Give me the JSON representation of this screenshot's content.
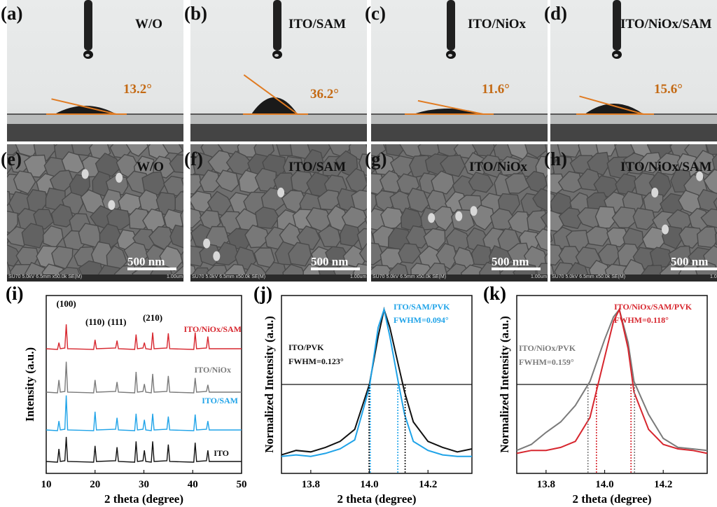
{
  "contact_angle_panels": [
    {
      "label": "(a)",
      "title": "W/O",
      "angle": "13.2°",
      "angle_value": 13.2
    },
    {
      "label": "(b)",
      "title": "ITO/SAM",
      "angle": "36.2°",
      "angle_value": 36.2
    },
    {
      "label": "(c)",
      "title": "ITO/NiOx",
      "angle": "11.6°",
      "angle_value": 11.6
    },
    {
      "label": "(d)",
      "title": "ITO/NiOx/SAM",
      "angle": "15.6°",
      "angle_value": 15.6
    }
  ],
  "sem_panels": [
    {
      "label": "(e)",
      "title": "W/O",
      "scale": "500 nm",
      "meta": "SU70 5.0kV 6.5mm x50.0k SE(M)",
      "scale_small": "1.00um"
    },
    {
      "label": "(f)",
      "title": "ITO/SAM",
      "scale": "500 nm",
      "meta": "SU70 5.0kV 6.5mm x50.0k SE(M)",
      "scale_small": "1.00um"
    },
    {
      "label": "(g)",
      "title": "ITO/NiOx",
      "scale": "500 nm",
      "meta": "SU70 5.0kV 6.5mm x50.0k SE(M)",
      "scale_small": "1.00um"
    },
    {
      "label": "(h)",
      "title": "ITO/NiOx/SAM",
      "scale": "500 nm",
      "meta": "SU70 5.0kV 6.5mm x50.0k SE(M)",
      "scale_small": "1.00um"
    }
  ],
  "colors": {
    "black": "#111111",
    "gray": "#7a7a7a",
    "blue": "#1fa3e8",
    "red": "#d7262e",
    "orange": "#e07b22"
  },
  "chart_data": [
    {
      "panel": "(i)",
      "type": "line",
      "xlabel": "2 theta (degree)",
      "ylabel": "Intensity (a.u.)",
      "xlim": [
        10,
        50
      ],
      "xticks": [
        10,
        20,
        30,
        40,
        50
      ],
      "peaks": [
        12.6,
        14.1,
        20.0,
        24.5,
        28.4,
        30.1,
        31.8,
        35.0,
        40.5,
        43.1
      ],
      "peak_labels": [
        {
          "text": "(100)",
          "x": 14.1
        },
        {
          "text": "(110)",
          "x": 20.0
        },
        {
          "text": "(111)",
          "x": 24.5
        },
        {
          "text": "(210)",
          "x": 31.8
        }
      ],
      "series": [
        {
          "name": "ITO",
          "color": "#111111",
          "heights": [
            0.28,
            0.55,
            0.35,
            0.32,
            0.45,
            0.25,
            0.45,
            0.38,
            0.42,
            0.25
          ]
        },
        {
          "name": "ITO/SAM",
          "color": "#1fa3e8",
          "heights": [
            0.22,
            0.85,
            0.45,
            0.3,
            0.4,
            0.25,
            0.4,
            0.33,
            0.38,
            0.22
          ]
        },
        {
          "name": "ITO/NiOx",
          "color": "#7a7a7a",
          "heights": [
            0.3,
            0.75,
            0.3,
            0.25,
            0.5,
            0.2,
            0.45,
            0.4,
            0.35,
            0.18
          ]
        },
        {
          "name": "ITO/NiOx/SAM",
          "color": "#d7262e",
          "heights": [
            0.15,
            0.6,
            0.22,
            0.2,
            0.35,
            0.15,
            0.4,
            0.38,
            0.4,
            0.3
          ]
        }
      ]
    },
    {
      "panel": "(j)",
      "type": "line",
      "xlabel": "2 theta (degree)",
      "ylabel": "Normalized Intensity (a.u.)",
      "xlim": [
        13.7,
        14.35
      ],
      "xticks": [
        13.8,
        14.0,
        14.2
      ],
      "ylim": [
        0,
        1
      ],
      "half_max": 0.5,
      "series": [
        {
          "name": "ITO/PVK",
          "fwhm_text": "FWHM=0.123°",
          "color": "#111111",
          "x": [
            13.7,
            13.75,
            13.8,
            13.85,
            13.9,
            13.95,
            14.0,
            14.03,
            14.05,
            14.07,
            14.1,
            14.12,
            14.15,
            14.2,
            14.25,
            14.3,
            14.35
          ],
          "y": [
            0.03,
            0.06,
            0.05,
            0.08,
            0.12,
            0.2,
            0.5,
            0.82,
            1.0,
            0.88,
            0.62,
            0.45,
            0.25,
            0.12,
            0.08,
            0.05,
            0.07
          ]
        },
        {
          "name": "ITO/SAM/PVK",
          "fwhm_text": "FWHM=0.094°",
          "color": "#1fa3e8",
          "x": [
            13.7,
            13.75,
            13.8,
            13.85,
            13.9,
            13.95,
            14.0,
            14.03,
            14.05,
            14.07,
            14.1,
            14.12,
            14.15,
            14.2,
            14.25,
            14.3,
            14.35
          ],
          "y": [
            0.02,
            0.03,
            0.02,
            0.04,
            0.07,
            0.13,
            0.48,
            0.88,
            1.0,
            0.82,
            0.5,
            0.3,
            0.12,
            0.06,
            0.03,
            0.02,
            0.02
          ]
        }
      ],
      "fwhm_lines": [
        {
          "color": "#111111",
          "x": [
            13.999,
            14.122
          ]
        },
        {
          "color": "#1fa3e8",
          "x": [
            14.003,
            14.097
          ]
        }
      ]
    },
    {
      "panel": "(k)",
      "type": "line",
      "xlabel": "2 theta (degree)",
      "ylabel": "Normalized Intensity (a.u.)",
      "xlim": [
        13.7,
        14.35
      ],
      "xticks": [
        13.8,
        14.0,
        14.2
      ],
      "ylim": [
        0,
        1
      ],
      "half_max": 0.5,
      "series": [
        {
          "name": "ITO/NiOx/PVK",
          "fwhm_text": "FWHM=0.159°",
          "color": "#7a7a7a",
          "x": [
            13.7,
            13.75,
            13.8,
            13.85,
            13.9,
            13.95,
            14.0,
            14.03,
            14.05,
            14.08,
            14.1,
            14.15,
            14.2,
            14.25,
            14.3,
            14.35
          ],
          "y": [
            0.06,
            0.1,
            0.18,
            0.25,
            0.36,
            0.52,
            0.8,
            0.95,
            1.0,
            0.78,
            0.52,
            0.3,
            0.14,
            0.08,
            0.07,
            0.06
          ]
        },
        {
          "name": "ITO/NiOx/SAM/PVK",
          "fwhm_text": "FWHM=0.118°",
          "color": "#d7262e",
          "x": [
            13.7,
            13.75,
            13.8,
            13.85,
            13.9,
            13.95,
            14.0,
            14.03,
            14.05,
            14.08,
            14.1,
            14.15,
            14.2,
            14.25,
            14.3,
            14.35
          ],
          "y": [
            0.04,
            0.06,
            0.06,
            0.08,
            0.12,
            0.28,
            0.68,
            0.92,
            1.0,
            0.74,
            0.45,
            0.2,
            0.1,
            0.07,
            0.06,
            0.04
          ]
        }
      ],
      "fwhm_lines": [
        {
          "color": "#7a7a7a",
          "x": [
            13.943,
            14.102
          ]
        },
        {
          "color": "#d7262e",
          "x": [
            13.972,
            14.09
          ]
        }
      ]
    }
  ]
}
